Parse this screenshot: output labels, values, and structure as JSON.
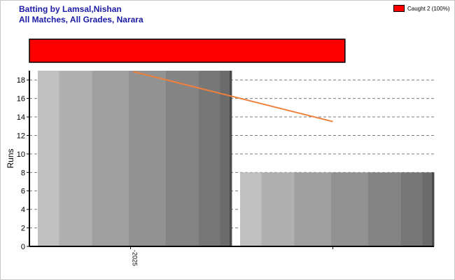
{
  "header": {
    "title_line1": "Batting by Lamsal,Nishan",
    "title_line2": "All Matches, All Grades, Narara"
  },
  "legend": {
    "label": "Caught 2 (100%)",
    "color": "#ff0000"
  },
  "chart_data": {
    "type": "bar",
    "categories": [
      "-2025",
      ""
    ],
    "series": [
      {
        "type": "bar",
        "values": [
          19,
          8
        ]
      },
      {
        "type": "line",
        "color": "#f0803c",
        "values": [
          18.9,
          13.5
        ]
      }
    ],
    "dismissals": [
      {
        "label": "Caught 2 (100%)",
        "percent": 100,
        "color": "#ff0000"
      }
    ],
    "xlabel": "",
    "ylabel": "Runs",
    "ylim": [
      0,
      19
    ],
    "yticks": [
      0,
      2,
      4,
      6,
      8,
      10,
      12,
      14,
      16,
      18
    ],
    "grid": true,
    "legend_position": "top-right"
  }
}
